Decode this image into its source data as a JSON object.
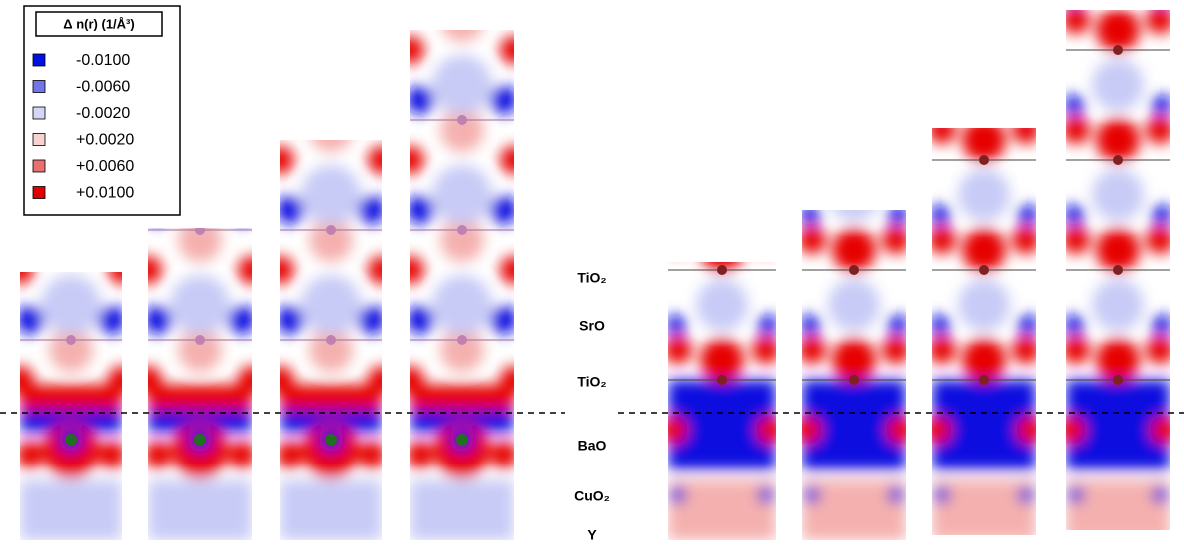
{
  "legend": {
    "title": "Δ n(r) (1/Å³)",
    "items": [
      {
        "label": "-0.0100",
        "color": "#0010e0"
      },
      {
        "label": "-0.0060",
        "color": "#7075ea"
      },
      {
        "label": "-0.0020",
        "color": "#d4d6f8"
      },
      {
        "label": "+0.0020",
        "color": "#f8d2d0"
      },
      {
        "label": "+0.0060",
        "color": "#ea7070"
      },
      {
        "label": "+0.0100",
        "color": "#e00000"
      }
    ]
  },
  "layers": [
    "TiO₂",
    "SrO",
    "TiO₂",
    "BaO",
    "CuO₂",
    "Y"
  ]
}
